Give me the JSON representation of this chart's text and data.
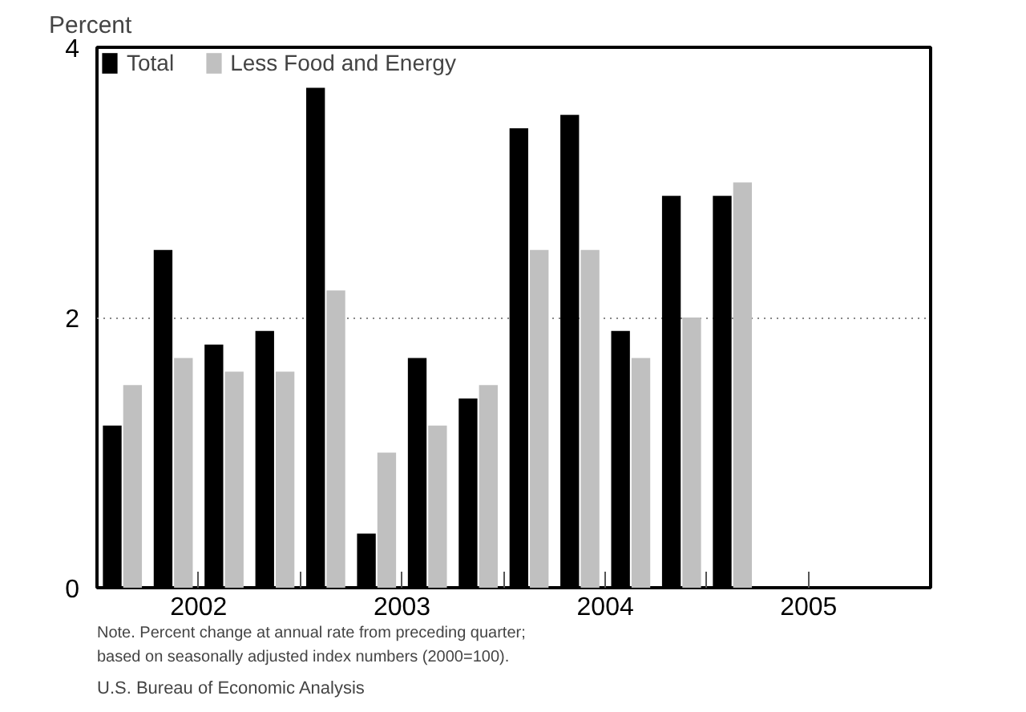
{
  "chart_data": {
    "type": "bar",
    "ylabel": "Percent",
    "x": [
      2002.125,
      2002.375,
      2002.625,
      2002.875,
      2003.125,
      2003.375,
      2003.625,
      2003.875,
      2004.125,
      2004.375,
      2004.625,
      2004.875,
      2005.125
    ],
    "series": [
      {
        "name": "Total",
        "color": "#000000",
        "values": [
          1.2,
          2.5,
          1.8,
          1.9,
          3.7,
          0.4,
          1.7,
          1.4,
          3.4,
          3.5,
          1.9,
          2.9,
          2.9
        ]
      },
      {
        "name": "Less Food and Energy",
        "color": "#c0c0c0",
        "values": [
          1.5,
          1.7,
          1.6,
          1.6,
          2.2,
          1.0,
          1.2,
          1.5,
          2.5,
          2.5,
          1.7,
          2.0,
          3.0
        ]
      }
    ],
    "xlim": [
      2002.0,
      2006.1
    ],
    "xticks": [
      {
        "value": 2002.5,
        "label": "2002"
      },
      {
        "value": 2003,
        "label": null
      },
      {
        "value": 2003.5,
        "label": "2003"
      },
      {
        "value": 2004,
        "label": null
      },
      {
        "value": 2004.5,
        "label": "2004"
      },
      {
        "value": 2005,
        "label": null
      },
      {
        "value": 2005.5,
        "label": "2005"
      }
    ],
    "ylim": [
      0,
      4
    ],
    "yticks": [
      0,
      2,
      4
    ],
    "grid": "y",
    "legend": "top left",
    "annotations": [
      "Note. Percent change at annual rate from preceding quarter;",
      "based on seasonally adjusted index numbers (2000=100).",
      "U.S. Bureau of Economic Analysis"
    ]
  }
}
